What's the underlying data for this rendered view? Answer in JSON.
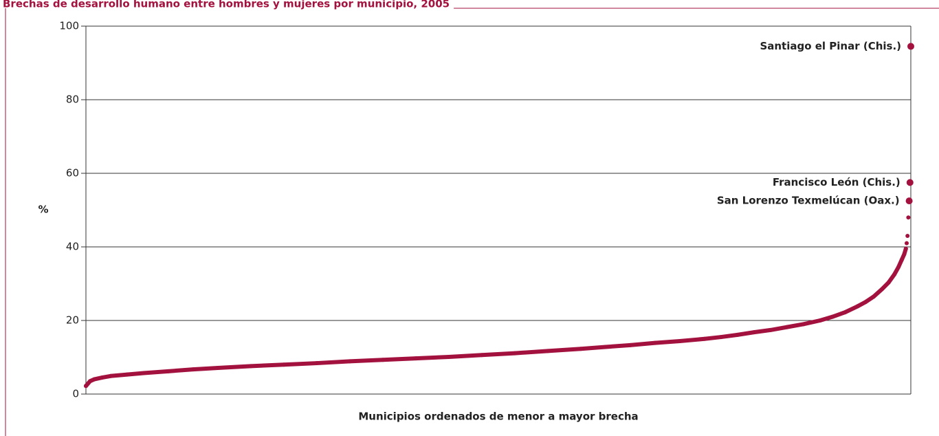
{
  "chart_data": {
    "type": "scatter",
    "title": "Brechas de desarrollo humano entre hombres y mujeres por municipio, 2005",
    "y_label": "%",
    "x_label": "Municipios ordenados de menor a mayor brecha",
    "color": "#a3123f",
    "x": [
      0,
      0.5,
      1,
      2,
      3,
      5,
      7,
      10,
      13,
      16,
      20,
      24,
      28,
      32,
      36,
      40,
      44,
      48,
      52,
      56,
      60,
      63,
      66,
      69,
      72,
      75,
      77,
      79,
      81,
      83,
      85,
      87,
      89,
      90.5,
      92,
      93.5,
      94.5,
      95.5,
      96.5,
      97.3,
      98,
      98.5,
      98.9,
      99.2,
      99.4,
      99.5,
      99.6,
      99.7,
      99.8,
      99.9,
      100
    ],
    "values": [
      2.2,
      3.5,
      4.0,
      4.5,
      4.9,
      5.3,
      5.7,
      6.2,
      6.7,
      7.1,
      7.6,
      8.0,
      8.4,
      8.9,
      9.3,
      9.7,
      10.1,
      10.6,
      11.1,
      11.7,
      12.3,
      12.8,
      13.3,
      13.9,
      14.4,
      15.0,
      15.5,
      16.1,
      16.8,
      17.4,
      18.2,
      19.0,
      20.0,
      21.0,
      22.2,
      23.8,
      25.0,
      26.5,
      28.5,
      30.3,
      32.5,
      34.5,
      36.5,
      38,
      39.5,
      41,
      43,
      48,
      52.5,
      57.5,
      94.5
    ],
    "annotations": [
      "Santiago el Pinar (Chis.)",
      "Francisco León (Chis.)",
      "San Lorenzo Texmelúcan (Oax.)"
    ],
    "xlim": [
      0,
      100
    ],
    "ylim": [
      0,
      100
    ],
    "yticks": [
      0,
      20,
      40,
      60,
      80,
      100
    ],
    "grid": true
  }
}
